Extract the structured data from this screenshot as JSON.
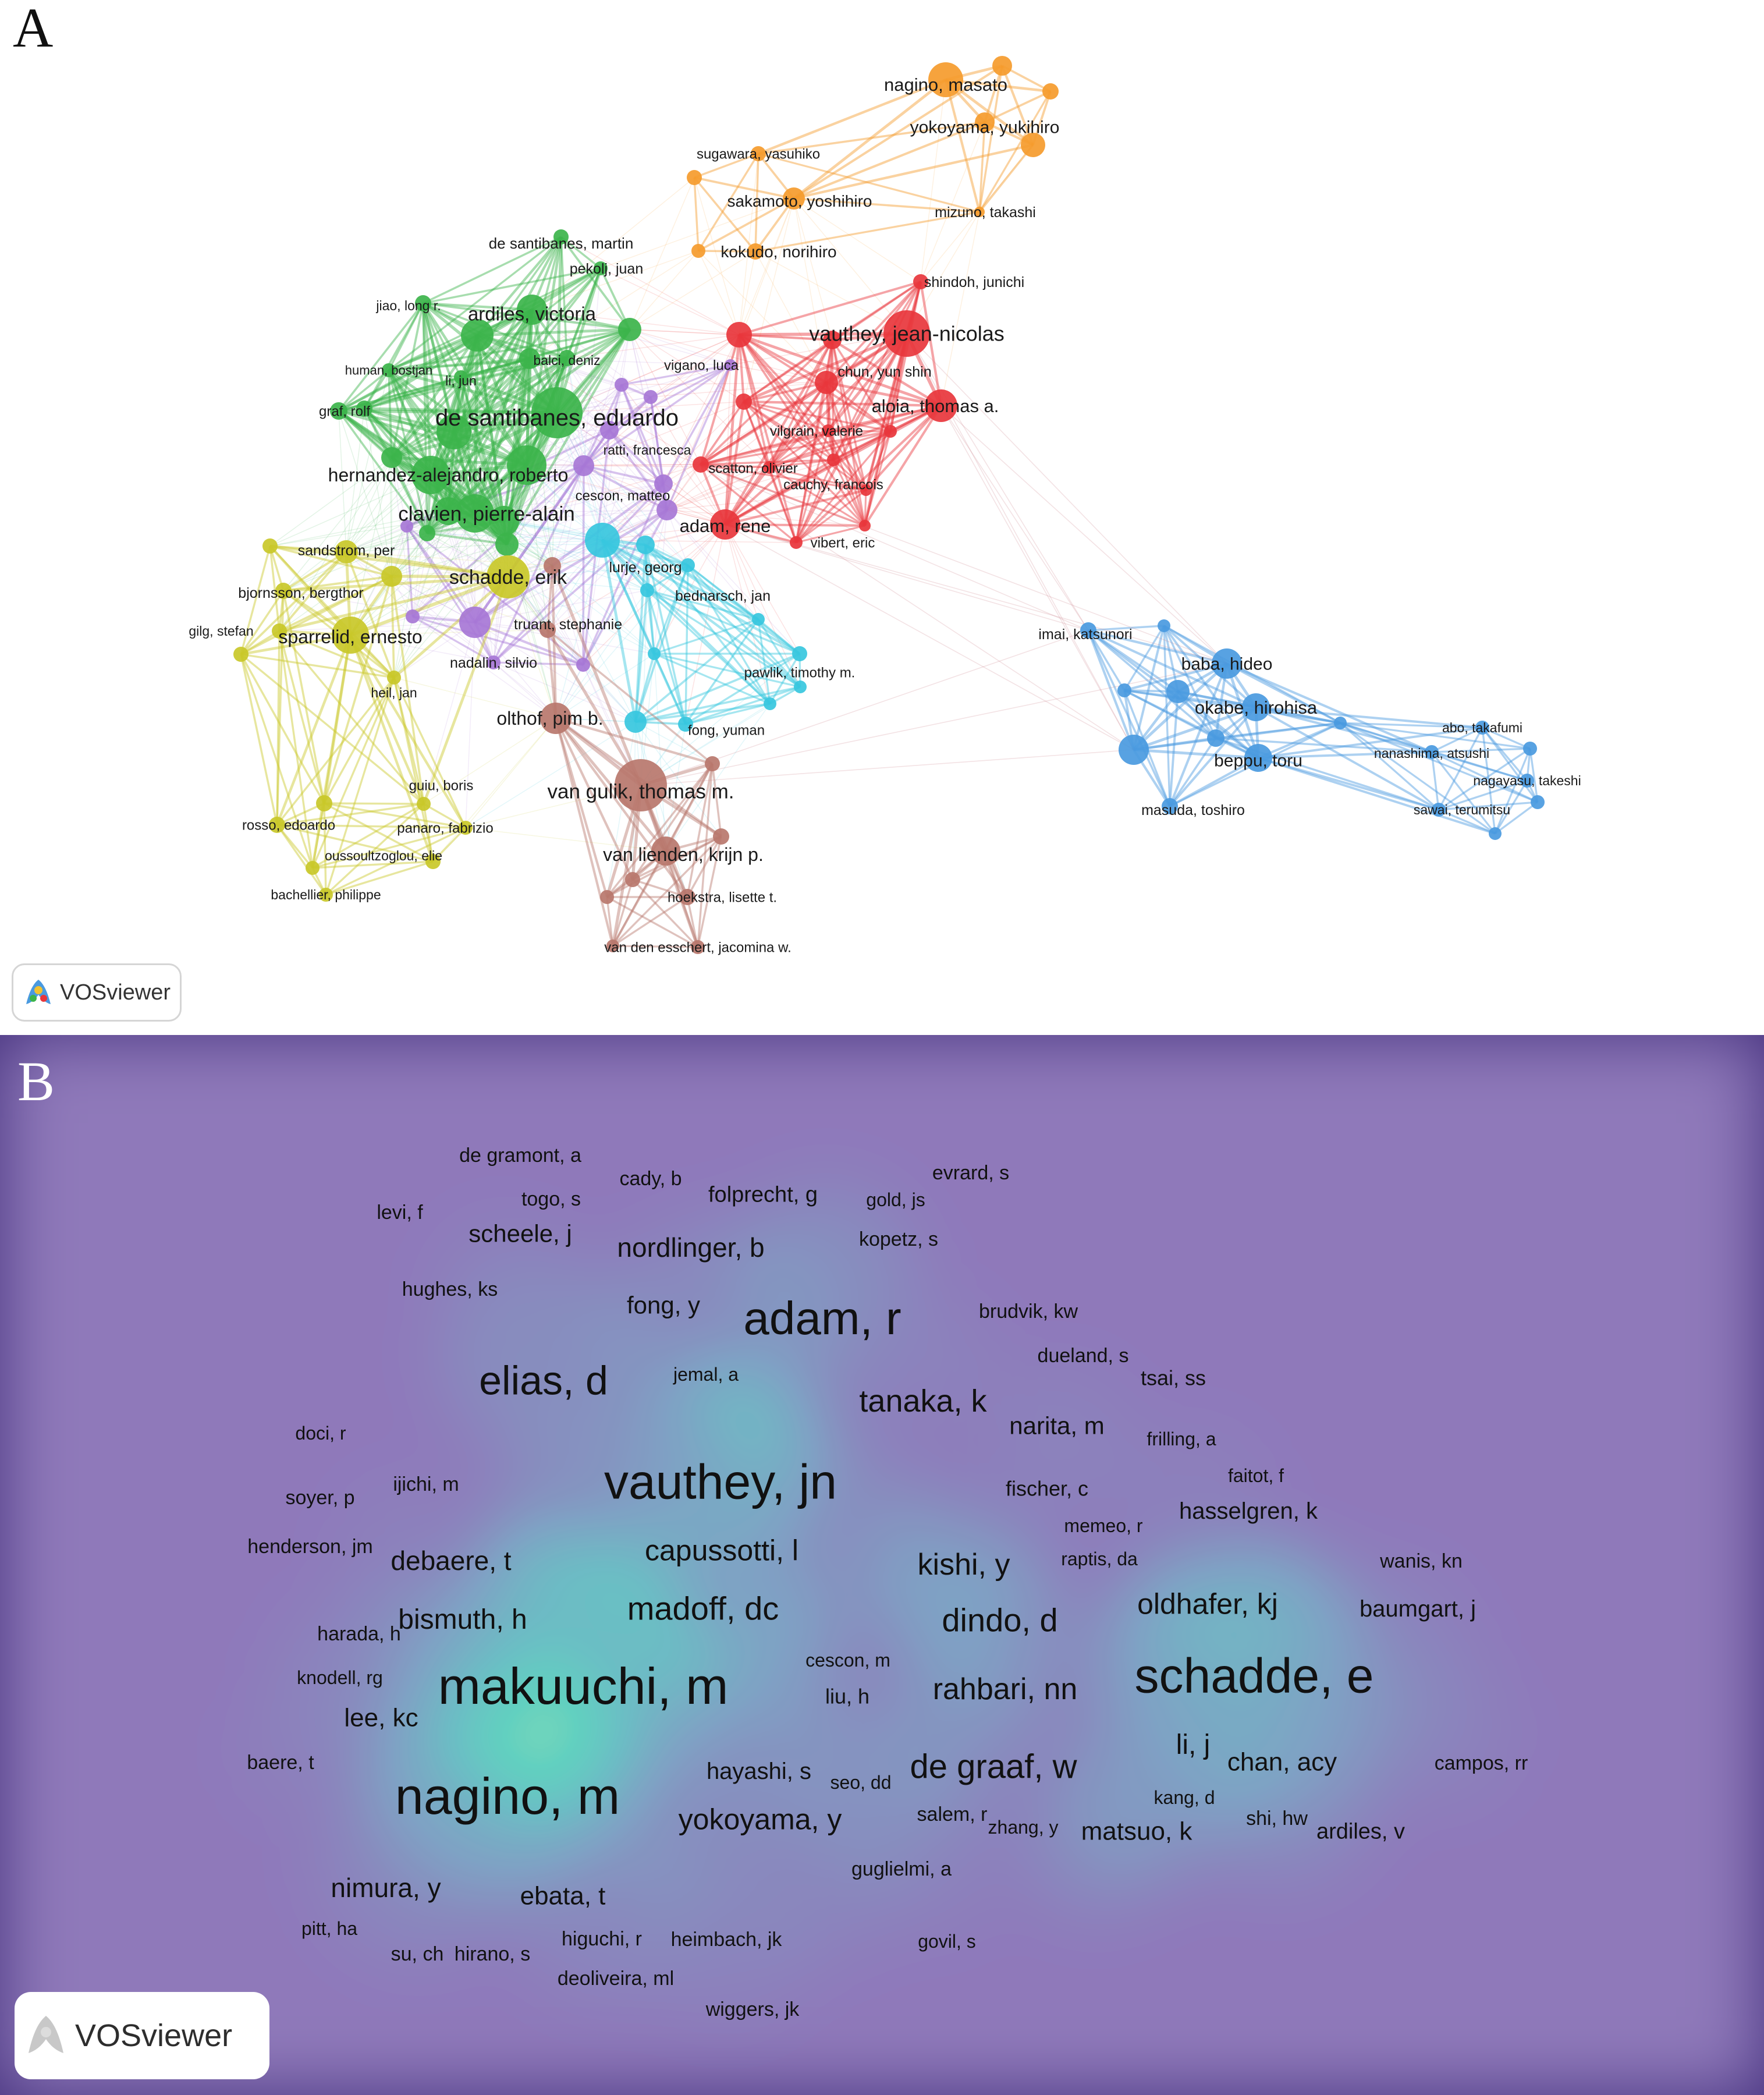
{
  "panel_a": {
    "letter": "A",
    "logo_text": "VOSviewer",
    "label_color": "#1a1a1a",
    "clusters": [
      {
        "id": "green",
        "color": "#3cb44b"
      },
      {
        "id": "red",
        "color": "#e8363c"
      },
      {
        "id": "orange",
        "color": "#f59b2c"
      },
      {
        "id": "blue",
        "color": "#4a9ae0"
      },
      {
        "id": "yellow",
        "color": "#c9c829"
      },
      {
        "id": "purple",
        "color": "#a777d6"
      },
      {
        "id": "cyan",
        "color": "#37c7de"
      },
      {
        "id": "brown",
        "color": "#b8776d"
      }
    ],
    "labels": [
      "nagino, masato",
      "yokoyama, yukihiro",
      "sugawara, yasuhiko",
      "sakamoto, yoshihiro",
      "kokudo, norihiro",
      "mizuno, takashi",
      "shindoh, junichi",
      "vauthey, jean-nicolas",
      "chun, yun shin",
      "aloia, thomas a.",
      "vilgrain, valerie",
      "scatton, olivier",
      "cauchy, francois",
      "adam, rene",
      "vibert, eric",
      "vigano, luca",
      "ratti, francesca",
      "cescon, matteo",
      "lurje, georg",
      "bednarsch, jan",
      "truant, stephanie",
      "nadalin, silvio",
      "pawlik, timothy m.",
      "fong, yuman",
      "de santibanes, martin",
      "pekolj, juan",
      "jiao, long r.",
      "ardiles, victoria",
      "human, bostjan",
      "balci, deniz",
      "li, jun",
      "graf, rolf",
      "de santibanes, eduardo",
      "hernandez-alejandro, roberto",
      "clavien, pierre-alain",
      "sandstrom, per",
      "bjornsson, bergthor",
      "schadde, erik",
      "gilg, stefan",
      "sparrelid, ernesto",
      "heil, jan",
      "olthof, pim b.",
      "guiu, boris",
      "van gulik, thomas m.",
      "rosso, edoardo",
      "panaro, fabrizio",
      "oussoultzoglou, elie",
      "bachellier, philippe",
      "van lienden, krijn p.",
      "hoekstra, lisette t.",
      "van den esschert, jacomina w.",
      "imai, katsunori",
      "baba, hideo",
      "okabe, hirohisa",
      "beppu, toru",
      "masuda, toshiro",
      "abo, takafumi",
      "nanashima, atsushi",
      "nagayasu, takeshi",
      "sawai, terumitsu"
    ]
  },
  "panel_b": {
    "letter": "B",
    "logo_text": "VOSviewer",
    "label_color": "#111111",
    "colormap": [
      "#46327e",
      "#365c8d",
      "#277f8e",
      "#1fa187",
      "#4ac16d",
      "#a0da39",
      "#fde725"
    ],
    "labels": [
      "de gramont, a",
      "togo, s",
      "cady, b",
      "folprecht, g",
      "evrard, s",
      "gold, js",
      "levi, f",
      "scheele, j",
      "nordlinger, b",
      "kopetz, s",
      "hughes, ks",
      "fong, y",
      "adam, r",
      "brudvik, kw",
      "dueland, s",
      "tsai, ss",
      "elias, d",
      "jemal, a",
      "tanaka, k",
      "doci, r",
      "narita, m",
      "frilling, a",
      "soyer, p",
      "ijichi, m",
      "vauthey, jn",
      "faitot, f",
      "fischer, c",
      "memeo, r",
      "hasselgren, k",
      "henderson, jm",
      "debaere, t",
      "capussotti, l",
      "raptis, da",
      "kishi, y",
      "wanis, kn",
      "oldhafer, kj",
      "baumgart, j",
      "harada, h",
      "bismuth, h",
      "madoff, dc",
      "dindo, d",
      "cescon, m",
      "schadde, e",
      "knodell, rg",
      "makuuchi, m",
      "liu, h",
      "rahbari, nn",
      "lee, kc",
      "li, j",
      "chan, acy",
      "campos, rr",
      "baere, t",
      "hayashi, s",
      "seo, dd",
      "de graaf, w",
      "kang, d",
      "nagino, m",
      "salem, r",
      "zhang, y",
      "shi, hw",
      "yokoyama, y",
      "matsuo, k",
      "ardiles, v",
      "guglielmi, a",
      "nimura, y",
      "ebata, t",
      "pitt, ha",
      "higuchi, r",
      "heimbach, jk",
      "su, ch",
      "hirano, s",
      "govil, s",
      "deoliveira, ml",
      "wiggers, jk"
    ]
  }
}
